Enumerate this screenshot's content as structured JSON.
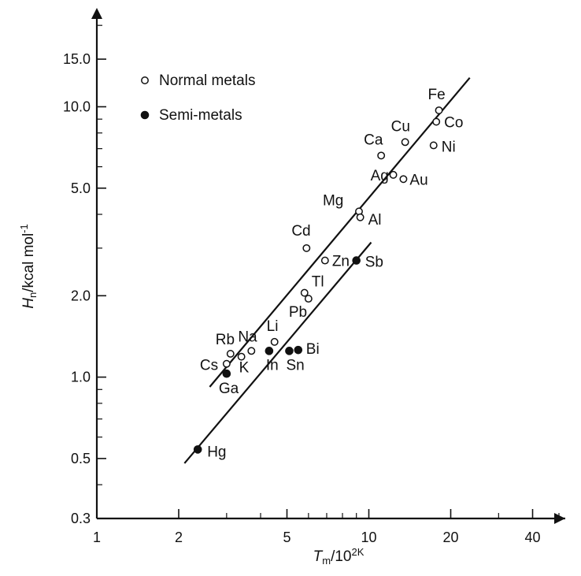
{
  "chart_data": {
    "type": "scatter",
    "x_scale": "log",
    "y_scale": "log",
    "xlim": [
      1,
      50
    ],
    "ylim": [
      0.3,
      22
    ],
    "grid": false,
    "legend_position": "top-left",
    "title": "",
    "xlabel": "T_m/10^2K",
    "ylabel": "H_n/kcal mol^-1",
    "x_ticks": [
      1,
      2,
      5,
      10,
      20,
      40
    ],
    "x_tick_labels": [
      "1",
      "2",
      "5",
      "10",
      "20",
      "40"
    ],
    "y_ticks": [
      0.3,
      0.5,
      1.0,
      2.0,
      5.0,
      10.0,
      15.0
    ],
    "y_tick_labels": [
      "0.3",
      "0.5",
      "1.0",
      "2.0",
      "5.0",
      "10.0",
      "15.0"
    ],
    "series": [
      {
        "name": "Normal metals",
        "marker": "open-circle",
        "points": [
          {
            "label": "Fe",
            "x": 18.1,
            "y": 9.7
          },
          {
            "label": "Co",
            "x": 17.7,
            "y": 8.8
          },
          {
            "label": "Ni",
            "x": 17.3,
            "y": 7.2
          },
          {
            "label": "Cu",
            "x": 13.6,
            "y": 7.4
          },
          {
            "label": "Ca",
            "x": 11.1,
            "y": 6.6
          },
          {
            "label": "Ag",
            "x": 12.3,
            "y": 5.6
          },
          {
            "label": "Au",
            "x": 13.4,
            "y": 5.4
          },
          {
            "label": "Mg",
            "x": 9.2,
            "y": 4.1
          },
          {
            "label": "Al",
            "x": 9.3,
            "y": 3.9
          },
          {
            "label": "Cd",
            "x": 5.9,
            "y": 3.0
          },
          {
            "label": "Zn",
            "x": 6.9,
            "y": 2.7
          },
          {
            "label": "Tl",
            "x": 5.8,
            "y": 2.05
          },
          {
            "label": "Pb",
            "x": 6.0,
            "y": 1.95
          },
          {
            "label": "Li",
            "x": 4.5,
            "y": 1.35
          },
          {
            "label": "Na",
            "x": 3.7,
            "y": 1.25
          },
          {
            "label": "Rb",
            "x": 3.1,
            "y": 1.22
          },
          {
            "label": "K",
            "x": 3.4,
            "y": 1.19
          },
          {
            "label": "Cs",
            "x": 3.0,
            "y": 1.12
          }
        ]
      },
      {
        "name": "Semi-metals",
        "marker": "filled-circle",
        "points": [
          {
            "label": "Sb",
            "x": 9.0,
            "y": 2.7
          },
          {
            "label": "Bi",
            "x": 5.5,
            "y": 1.26
          },
          {
            "label": "Sn",
            "x": 5.1,
            "y": 1.25
          },
          {
            "label": "In",
            "x": 4.3,
            "y": 1.25
          },
          {
            "label": "Ga",
            "x": 3.0,
            "y": 1.03
          },
          {
            "label": "Hg",
            "x": 2.35,
            "y": 0.54
          }
        ]
      }
    ],
    "fit_lines": [
      {
        "from": [
          2.6,
          0.92
        ],
        "to": [
          23.5,
          12.8
        ]
      },
      {
        "from": [
          2.1,
          0.48
        ],
        "to": [
          10.2,
          3.15
        ]
      }
    ]
  }
}
